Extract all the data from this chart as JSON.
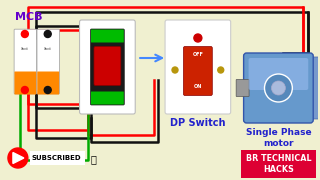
{
  "bg_color": "#f0f0d0",
  "title_text": "MCB",
  "dp_label": "DP Switch",
  "motor_label": "Single Phase\nmotor",
  "brand_label": "BR TECHNICAL\nHACKS",
  "subscribe_label": "SUBSCRIBED",
  "wire_red": "#ff0000",
  "wire_black": "#111111",
  "wire_green": "#00aa00",
  "lw": 1.8,
  "brand_bg": "#dd0033",
  "brand_text": "#ffffff",
  "dp_text_color": "#2222cc",
  "motor_text_color": "#2222cc",
  "mcb_label_color": "#6600cc"
}
